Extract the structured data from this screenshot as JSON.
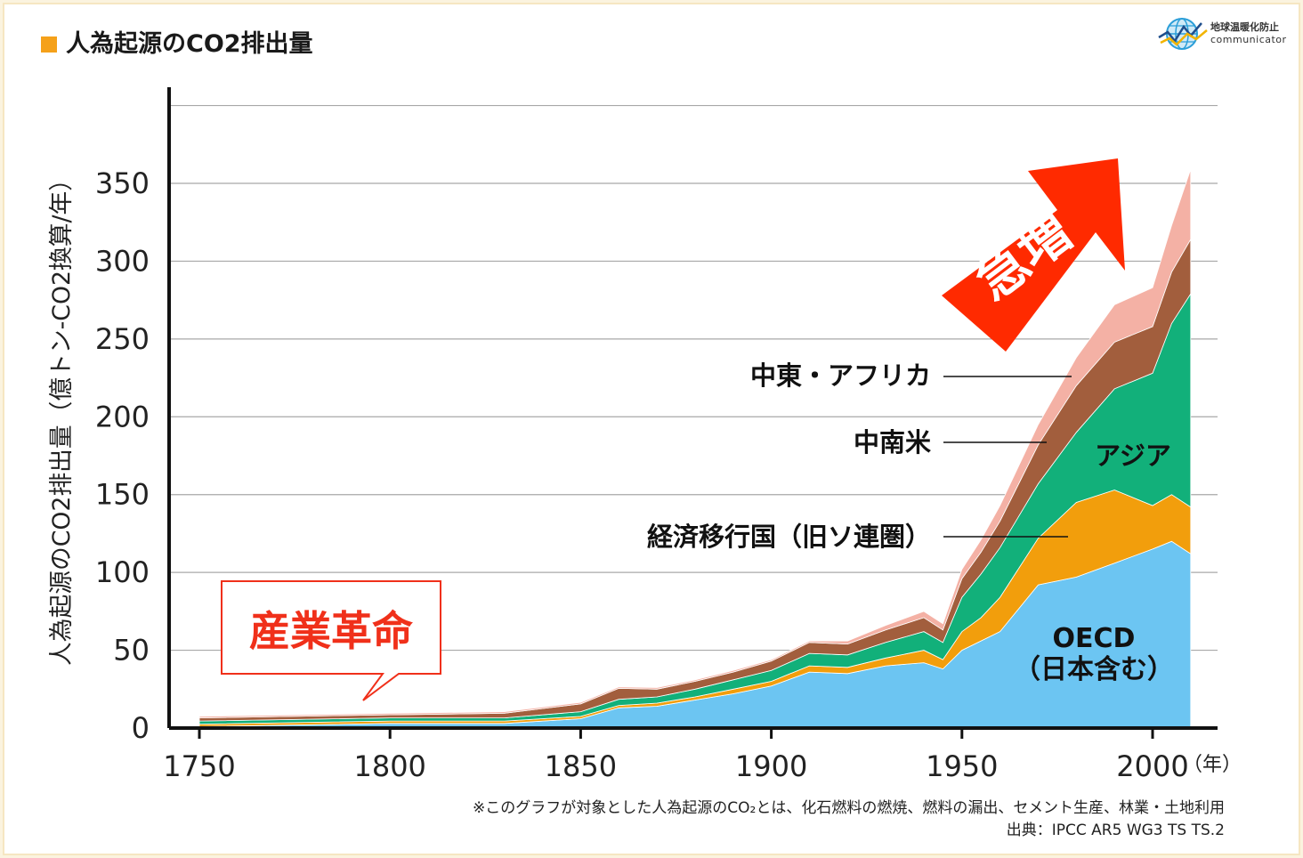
{
  "header": {
    "title": "人為起源のCO2排出量",
    "logo_jp": "地球温暖化防止",
    "logo_en": "communicator"
  },
  "chart_data": {
    "type": "area",
    "stacked": true,
    "title": "人為起源のCO2排出量",
    "xlabel": "",
    "ylabel": "人為起源のCO2排出量（億トン-CO2換算/年）",
    "x_unit_label": "（年）",
    "xlim": [
      1750,
      2010
    ],
    "ylim": [
      0,
      400
    ],
    "x_ticks": [
      1750,
      1800,
      1850,
      1900,
      1950,
      2000
    ],
    "y_ticks": [
      0,
      50,
      100,
      150,
      200,
      250,
      300,
      350
    ],
    "grid": true,
    "x": [
      1750,
      1800,
      1830,
      1850,
      1860,
      1870,
      1880,
      1890,
      1900,
      1910,
      1920,
      1930,
      1940,
      1945,
      1950,
      1955,
      1960,
      1970,
      1980,
      1990,
      2000,
      2005,
      2010
    ],
    "series": [
      {
        "name": "OECD（日本含む）",
        "color": "#6cc5f2",
        "values": [
          1,
          3,
          3,
          6,
          13,
          14,
          18,
          22,
          27,
          36,
          35,
          40,
          42,
          38,
          50,
          56,
          62,
          92,
          97,
          106,
          115,
          120,
          112
        ]
      },
      {
        "name": "経済移行国（旧ソ連圏）",
        "color": "#f29e0c",
        "values": [
          1.5,
          1.5,
          1.5,
          1.5,
          1.5,
          2,
          2,
          3,
          3,
          4,
          4,
          5,
          8,
          6,
          12,
          15,
          22,
          30,
          48,
          47,
          28,
          30,
          30
        ]
      },
      {
        "name": "アジア",
        "color": "#12b07a",
        "values": [
          2,
          2,
          2,
          3,
          4,
          4,
          5,
          6,
          7,
          8,
          8,
          10,
          12,
          11,
          22,
          28,
          32,
          35,
          45,
          65,
          85,
          110,
          137
        ]
      },
      {
        "name": "中南米",
        "color": "#a25e3d",
        "values": [
          2,
          2,
          3,
          5,
          7,
          5,
          5,
          5,
          6,
          7,
          7,
          8,
          9,
          8,
          12,
          14,
          17,
          25,
          30,
          30,
          30,
          33,
          35
        ]
      },
      {
        "name": "中東・アフリカ",
        "color": "#f4b1a5",
        "values": [
          1,
          1,
          1,
          1,
          1,
          1,
          1,
          1,
          1,
          1,
          2,
          3,
          4,
          4,
          6,
          8,
          10,
          13,
          18,
          24,
          25,
          30,
          45
        ]
      }
    ],
    "annotations": {
      "industrial_revolution": "産業革命",
      "surge": "急増",
      "label_mideast_africa": "中東・アフリカ",
      "label_latam": "中南米",
      "label_transition": "経済移行国（旧ソ連圏）",
      "label_asia": "アジア",
      "label_oecd_line1": "OECD",
      "label_oecd_line2": "（日本含む）"
    },
    "colors": {
      "grid": "#a8a8a8",
      "axis": "#111111",
      "callout_text": "#f0301a",
      "callout_border": "#f0301a",
      "surge_arrow": "#ff2a00"
    }
  },
  "footnote": {
    "line1": "※このグラフが対象とした人為起源のCO₂とは、化石燃料の燃焼、燃料の漏出、セメント生産、林業・土地利用",
    "line2": "出典：IPCC AR5 WG3 TS TS.2"
  }
}
